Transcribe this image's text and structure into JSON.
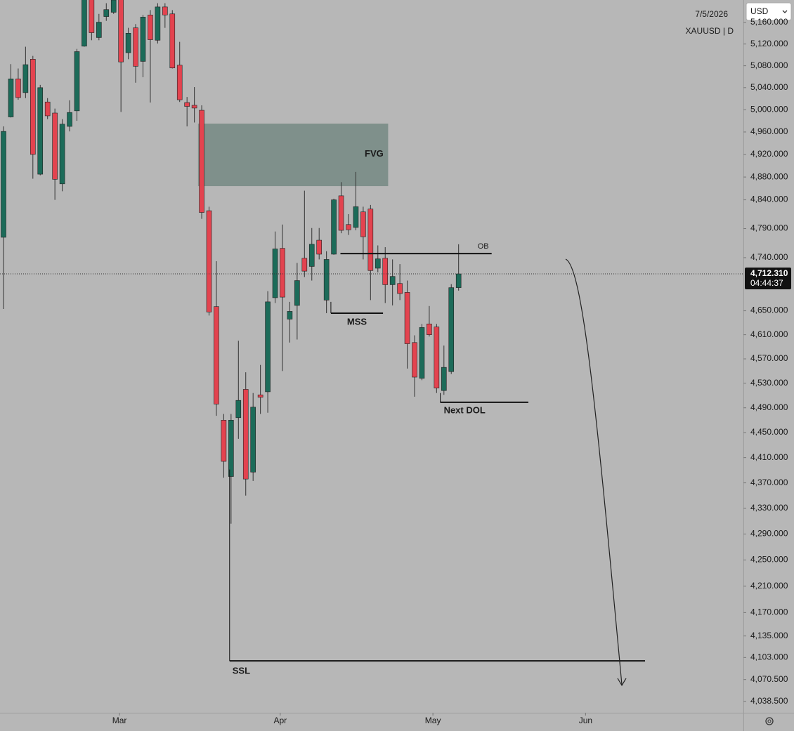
{
  "chart_data": {
    "type": "candlestick",
    "header": {
      "date": "7/5/2026",
      "symbol": "XAUUSD | D",
      "currency": "USD",
      "countdown": "04:44:37",
      "last_price_label": "4,712.310"
    },
    "up_color": "#1c6b59",
    "down_color": "#e3434f",
    "wick_color": "#333333",
    "log_scale": true,
    "grid": false,
    "xlim": [
      -0.48,
      100.8
    ],
    "xticks": [
      {
        "value": 15.8,
        "label": "Mar"
      },
      {
        "value": 37.7,
        "label": "Apr"
      },
      {
        "value": 58.5,
        "label": "May"
      },
      {
        "value": 79.3,
        "label": "Jun"
      }
    ],
    "ylim": [
      4022,
      5202
    ],
    "yticks": [
      {
        "value": 5160,
        "label": "5,160.000"
      },
      {
        "value": 5120,
        "label": "5,120.000"
      },
      {
        "value": 5080,
        "label": "5,080.000"
      },
      {
        "value": 5040,
        "label": "5,040.000"
      },
      {
        "value": 5000,
        "label": "5,000.000"
      },
      {
        "value": 4960,
        "label": "4,960.000"
      },
      {
        "value": 4920,
        "label": "4,920.000"
      },
      {
        "value": 4880,
        "label": "4,880.000"
      },
      {
        "value": 4840,
        "label": "4,840.000"
      },
      {
        "value": 4790,
        "label": "4,790.000"
      },
      {
        "value": 4740,
        "label": "4,740.000"
      },
      {
        "value": 4650,
        "label": "4,650.000"
      },
      {
        "value": 4610,
        "label": "4,610.000"
      },
      {
        "value": 4570,
        "label": "4,570.000"
      },
      {
        "value": 4530,
        "label": "4,530.000"
      },
      {
        "value": 4490,
        "label": "4,490.000"
      },
      {
        "value": 4450,
        "label": "4,450.000"
      },
      {
        "value": 4410,
        "label": "4,410.000"
      },
      {
        "value": 4370,
        "label": "4,370.000"
      },
      {
        "value": 4330,
        "label": "4,330.000"
      },
      {
        "value": 4290,
        "label": "4,290.000"
      },
      {
        "value": 4250,
        "label": "4,250.000"
      },
      {
        "value": 4210,
        "label": "4,210.000"
      },
      {
        "value": 4170,
        "label": "4,170.000"
      },
      {
        "value": 4135,
        "label": "4,135.000"
      },
      {
        "value": 4103,
        "label": "4,103.000"
      },
      {
        "value": 4070.5,
        "label": "4,070.500"
      },
      {
        "value": 4038.5,
        "label": "4,038.500"
      }
    ],
    "open": [
      4775,
      4987,
      5056,
      5031,
      5092,
      4885,
      5014,
      4994,
      4868,
      4970,
      4998,
      5116,
      5209,
      5132,
      5171,
      5179,
      5209,
      5104,
      5150,
      5088,
      5174,
      5127,
      5189,
      5176,
      5081,
      5013,
      5008,
      4999,
      4821,
      4657,
      4470,
      4380,
      4474,
      4520,
      4387,
      4511,
      4516,
      4672,
      4756,
      4636,
      4659,
      4739,
      4725,
      4770,
      4668,
      4746,
      4847,
      4797,
      4792,
      4819,
      4824,
      4722,
      4739,
      4694,
      4696,
      4681,
      4597,
      4538,
      4628,
      4623,
      4518,
      4549,
      4689
    ],
    "high": [
      4970,
      5083,
      5075,
      5115,
      5098,
      5045,
      5021,
      5002,
      4983,
      5017,
      5111,
      5229,
      5222,
      5176,
      5196,
      5216,
      5222,
      5150,
      5157,
      5174,
      5183,
      5196,
      5196,
      5183,
      5124,
      5023,
      5041,
      5008,
      4828,
      4734,
      4480,
      4480,
      4600,
      4548,
      4514,
      4560,
      4683,
      4785,
      4797,
      4665,
      4731,
      4856,
      4791,
      4791,
      4751,
      4842,
      4871,
      4815,
      4889,
      4828,
      4831,
      4761,
      4758,
      4737,
      4729,
      4701,
      4609,
      4628,
      4658,
      4628,
      4592,
      4695,
      4763
    ],
    "low": [
      4653,
      4986,
      5018,
      5021,
      4877,
      4883,
      4983,
      4840,
      4855,
      4961,
      4980,
      5115,
      5127,
      5127,
      5163,
      5176,
      4996,
      5092,
      5049,
      5059,
      5013,
      5121,
      5150,
      5075,
      5014,
      4970,
      4977,
      4807,
      4642,
      4477,
      4378,
      4306,
      4440,
      4350,
      4373,
      4480,
      4482,
      4663,
      4550,
      4597,
      4602,
      4707,
      4701,
      4737,
      4646,
      4745,
      4782,
      4779,
      4787,
      4737,
      4668,
      4715,
      4663,
      4659,
      4668,
      4554,
      4508,
      4535,
      4607,
      4514,
      4511,
      4545,
      4684
    ],
    "close": [
      4961,
      5056,
      5022,
      5082,
      4920,
      5040,
      4989,
      4876,
      4974,
      4995,
      5106,
      5215,
      5141,
      5160.5,
      5184,
      5202,
      5087,
      5140,
      5079,
      5170,
      5128,
      5189,
      5174,
      5076,
      5018,
      5006,
      5003,
      4818,
      4648,
      4496,
      4404,
      4470,
      4502,
      4376,
      4491,
      4507,
      4665,
      4755,
      4673,
      4649,
      4701,
      4717,
      4763,
      4746,
      4737,
      4840,
      4787,
      4788,
      4828,
      4776,
      4718,
      4738,
      4694,
      4708,
      4679,
      4595,
      4540,
      4622,
      4610,
      4522,
      4556,
      4689,
      4712.31
    ],
    "annotations": [
      {
        "kind": "zone",
        "label": "FVG",
        "x": [
          26.5,
          52.4
        ],
        "y": [
          4864,
          4975
        ],
        "color": "#7f908b"
      },
      {
        "kind": "line",
        "label": "OB",
        "x": [
          45.9,
          66.5
        ],
        "y": 4747
      },
      {
        "kind": "line",
        "label": "MSS",
        "x": [
          44.6,
          51.7
        ],
        "y": 4646,
        "from": 4665
      },
      {
        "kind": "line",
        "label": "Next DOL",
        "x": [
          59.5,
          71.5
        ],
        "y": 4499,
        "from": 4514
      },
      {
        "kind": "line",
        "label": "SSL",
        "x": [
          30.8,
          87.4
        ],
        "y": 4098,
        "from": 4391
      }
    ]
  }
}
